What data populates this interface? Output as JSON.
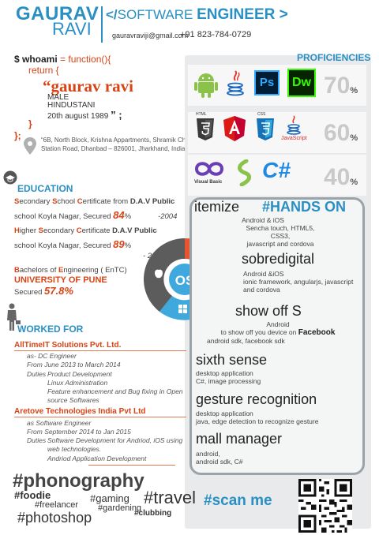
{
  "header": {
    "first_name": "GAURAV",
    "last_name": "RAVI",
    "role_code": "</",
    "role_software": "SOFTWARE ",
    "role_engineer": "ENGINEER >",
    "email": "gauravraviji@gmail.com",
    "phone": "+91 823-784-0729"
  },
  "code": {
    "line1_var": "$ whoami",
    "line1_eq": " = ",
    "line1_fn": "function(){",
    "line2": "return  {",
    "name_quote": "“gaurav ravi",
    "gender": "MALE",
    "origin": "HINDUSTANI",
    "dob": "20th august 1989",
    "dob_end": "” ;",
    "close1": "}",
    "close2": "};",
    "address": "“6B, North Block, Krishna Appartments, Shramik Chowk, Station Road, Dhanbad – 826001, Jharkhand, India.”;"
  },
  "proficiencies": {
    "title": "PROFICIENCIES",
    "rows": [
      {
        "pct": "70",
        "icons": [
          "android-icon",
          "java-icon",
          "photoshop-icon",
          "dreamweaver-icon"
        ]
      },
      {
        "pct": "60",
        "icons": [
          "html5-icon",
          "angularjs-icon",
          "css3-icon",
          "javascript-icon"
        ]
      },
      {
        "pct": "40",
        "icons": [
          "visual-basic-icon",
          "sencha-icon",
          "csharp-icon"
        ]
      }
    ],
    "pct_sign": "%",
    "ps_label": "Ps",
    "dw_label": "Dw",
    "html_label": "HTML",
    "css_label": "CSS",
    "js_label": "JavaScript",
    "vb_label": "Visual Basic",
    "csharp_label": "C#"
  },
  "education": {
    "title": "EDUCATION",
    "e1_line1": [
      "S",
      "econdary ",
      "S",
      "chool ",
      "C",
      "ertificate from ",
      "D.A.V Public"
    ],
    "e1_line2": "school Koyla Nagar, Secured ",
    "e1_score": "84",
    "e1_year": "-2004",
    "e2_line1": [
      "H",
      "igher ",
      "S",
      "econdary ",
      "C",
      "ertificate ",
      "D.A.V Public"
    ],
    "e2_line2": "school Koyla Nagar, Secured ",
    "e2_score": "89",
    "e2_year": "- 2006",
    "e3_line1": [
      "B",
      "achelors of ",
      "E",
      "ngineering ( EnTC)"
    ],
    "e3_uni": "UNIVERSITY OF PUNE",
    "e3_secured": "Secured ",
    "e3_score": "57.8%",
    "pct": "%"
  },
  "work": {
    "title": "WORKED FOR",
    "jobs": [
      {
        "company": "AllTimeIT Solutions Pvt. Ltd.",
        "role": "as- DC Engineer",
        "period": "From June 2013 to March 2014",
        "duties_label": "Duties",
        "duties": [
          "Product Development",
          "Linux Administration",
          "Feature enhancement and Bug fixing in Open",
          "source Softwares"
        ]
      },
      {
        "company": "Aretove Technologies India Pvt Ltd",
        "role": "as Software Engineer",
        "period": "From September 2014 to Jan 2015",
        "duties_label": "Duties",
        "duties": [
          "Software Development for Andriod, iOS using",
          "web technologies.",
          "Andriod Application Development"
        ]
      }
    ]
  },
  "os_ring": {
    "label": "OS"
  },
  "hands_on": {
    "title": "#HANDS ON",
    "projects": [
      {
        "name": "itemize",
        "lines": [
          "Android & iOS",
          "Sencha touch, HTML5, CSS3,",
          "javascript and cordova"
        ]
      },
      {
        "name": "sobredigital",
        "lines": [
          "Android &iOS",
          "ionic framework, angularjs, javascript",
          "and cordova"
        ]
      },
      {
        "name": "show off S",
        "lines": [
          "Android",
          "to show off you device on ",
          "android sdk, facebook sdk"
        ],
        "bold": "Facebook"
      },
      {
        "name": "sixth sense",
        "lines": [
          "desktop application",
          "C#, image processing"
        ]
      },
      {
        "name": "gesture recognition",
        "lines": [
          "desktop application",
          "java, edge detection to recognize gesture"
        ]
      },
      {
        "name": "mall manager",
        "lines": [
          "android,",
          "android sdk, C#"
        ]
      }
    ]
  },
  "tags": {
    "phonography": "#phonography",
    "foodie": "#foodie",
    "gaming": "#gaming",
    "travel": "#travel",
    "freelancer": "#freelancer",
    "gardening": "#gardening",
    "photoshop": "#photoshop",
    "clubbing": "#clubbing"
  },
  "scan": {
    "label": "#scan me"
  },
  "colors": {
    "blue": "#2a8fc4",
    "red": "#d84315",
    "grey": "#9aa4a8"
  }
}
